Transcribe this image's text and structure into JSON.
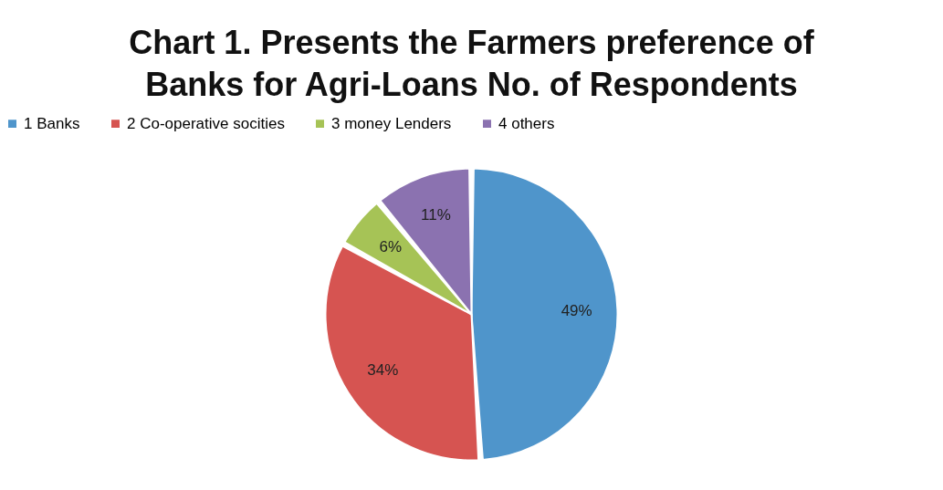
{
  "chart_data": {
    "type": "pie",
    "title": "Chart 1.  Presents the Farmers preference of Banks for Agri-Loans No. of Respondents",
    "categories": [
      "1 Banks",
      "2 Co-operative socities",
      "3 money Lenders",
      "4 others"
    ],
    "values": [
      49,
      34,
      6,
      11
    ],
    "colors": [
      "#4f95cb",
      "#d65451",
      "#a6c356",
      "#8b72b0"
    ],
    "value_labels": [
      "49%",
      "34%",
      "6%",
      "11%"
    ],
    "legend": "top"
  }
}
